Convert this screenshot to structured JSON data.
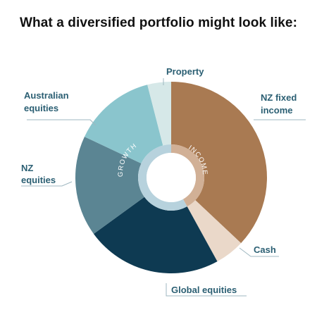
{
  "title": "What a diversified portfolio might look like:",
  "chart_data": {
    "type": "pie",
    "style": "donut",
    "title": "What a diversified portfolio might look like:",
    "slices": [
      {
        "label": "NZ fixed income",
        "value": 37,
        "color": "#a97a52"
      },
      {
        "label": "Cash",
        "value": 5,
        "color": "#ead8c9"
      },
      {
        "label": "Global equities",
        "value": 23,
        "color": "#0e3a52"
      },
      {
        "label": "NZ equities",
        "value": 17,
        "color": "#5b8593"
      },
      {
        "label": "Australian equities",
        "value": 14,
        "color": "#8ac5cd"
      },
      {
        "label": "Property",
        "value": 4,
        "color": "#d6e8e8"
      }
    ],
    "inner_ring": [
      {
        "label": "INCOME",
        "value": 42,
        "color": "#d1b096"
      },
      {
        "label": "GROWTH",
        "value": 58,
        "color": "#b7d2dd"
      }
    ]
  },
  "labels": {
    "nz_fixed_income": [
      "NZ fixed",
      "income"
    ],
    "cash": [
      "Cash"
    ],
    "global_equities": [
      "Global equities"
    ],
    "nz_equities": [
      "NZ",
      "equities"
    ],
    "australian_equities": [
      "Australian",
      "equities"
    ],
    "property": [
      "Property"
    ]
  },
  "ring_labels": {
    "income": "INCOME",
    "growth": "GROWTH"
  },
  "colors": {
    "label_text": "#2b5f73",
    "leader_line": "#9fb7c0"
  }
}
